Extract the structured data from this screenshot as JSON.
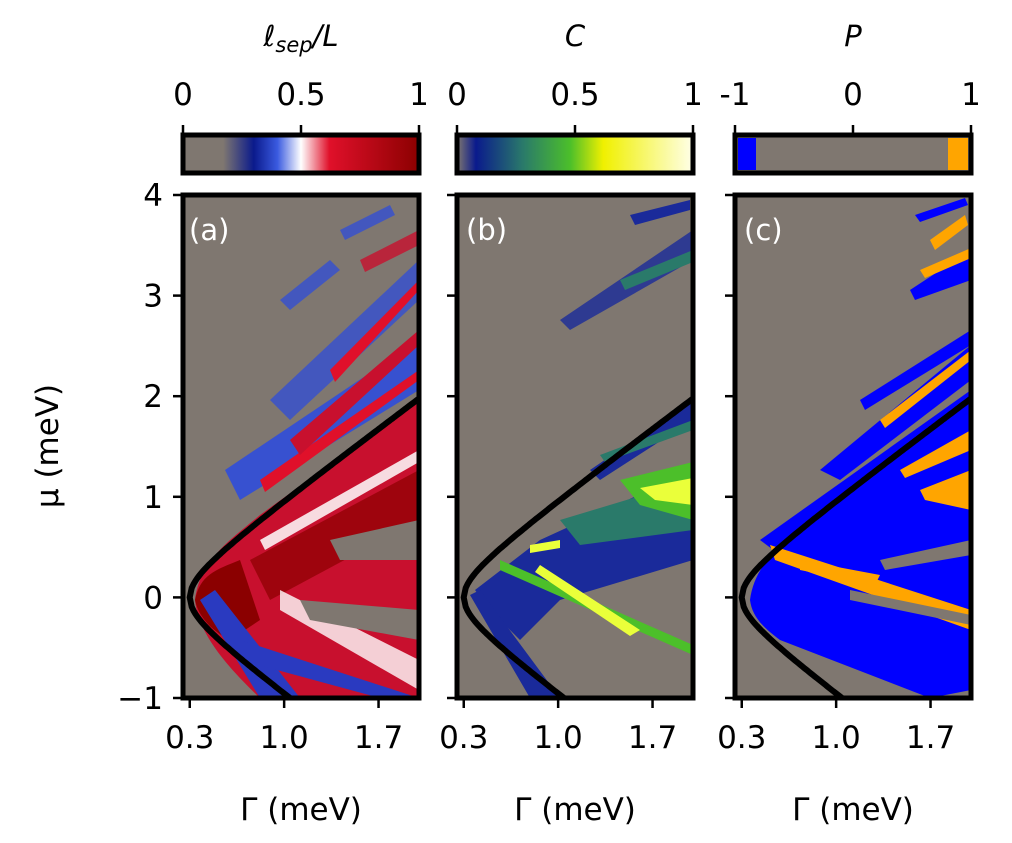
{
  "chart_data": [
    {
      "panel": "a",
      "tag": "(a)",
      "type": "heatmap",
      "colorbar": {
        "label_prefix": "ℓ",
        "label_sub": "sep",
        "label_suffix": "/L",
        "ticks": [
          "0",
          "0.5",
          "1"
        ],
        "range": [
          0,
          1
        ],
        "stops": [
          "#7f7770",
          "#7f7770",
          "#0a1a8c",
          "#ffffff",
          "#e0102a",
          "#8b0000"
        ]
      },
      "xlabel": "Γ (meV)",
      "ylabel": "μ (meV)",
      "xticks": [
        "0.3",
        "1.0",
        "1.7"
      ],
      "xtick_values": [
        0.3,
        1.0,
        1.7
      ],
      "yticks": [
        "−1",
        "0",
        "1",
        "2",
        "3",
        "4"
      ],
      "ytick_values": [
        -1,
        0,
        1,
        2,
        3,
        4
      ],
      "xlim": [
        0.25,
        2.0
      ],
      "ylim": [
        -1,
        4
      ],
      "boundary_curve": "μ = ±sqrt(Γ² − 0.3²)",
      "background": "#7f7770"
    },
    {
      "panel": "b",
      "tag": "(b)",
      "type": "heatmap",
      "colorbar": {
        "label": "C",
        "ticks": [
          "0",
          "0.5",
          "1"
        ],
        "range": [
          0,
          1
        ],
        "stops": [
          "#7f7770",
          "#0a1a8c",
          "#2a7a6a",
          "#4cbf2a",
          "#f0f000",
          "#ffffe8"
        ]
      },
      "xlabel": "Γ (meV)",
      "xticks": [
        "0.3",
        "1.0",
        "1.7"
      ],
      "xtick_values": [
        0.3,
        1.0,
        1.7
      ],
      "xlim": [
        0.25,
        2.0
      ],
      "ylim": [
        -1,
        4
      ],
      "background": "#7f7770"
    },
    {
      "panel": "c",
      "tag": "(c)",
      "type": "heatmap",
      "colorbar": {
        "label": "P",
        "ticks": [
          "-1",
          "0",
          "1"
        ],
        "range": [
          -1,
          1
        ],
        "stops": [
          "#0000ff",
          "#7f7770",
          "#ffa500"
        ]
      },
      "xlabel": "Γ (meV)",
      "xticks": [
        "0.3",
        "1.0",
        "1.7"
      ],
      "xtick_values": [
        0.3,
        1.0,
        1.7
      ],
      "xlim": [
        0.25,
        2.0
      ],
      "ylim": [
        -1,
        4
      ],
      "background": "#7f7770"
    }
  ],
  "colors": {
    "background": "#7f7770",
    "curve": "#000000",
    "red": "#c8102e",
    "dark_red": "#8b0000",
    "blue": "#0000ff",
    "orange": "#ffa500",
    "green": "#4cbf2a",
    "yellow": "#eaff3a",
    "navy": "#1a2a9a"
  }
}
